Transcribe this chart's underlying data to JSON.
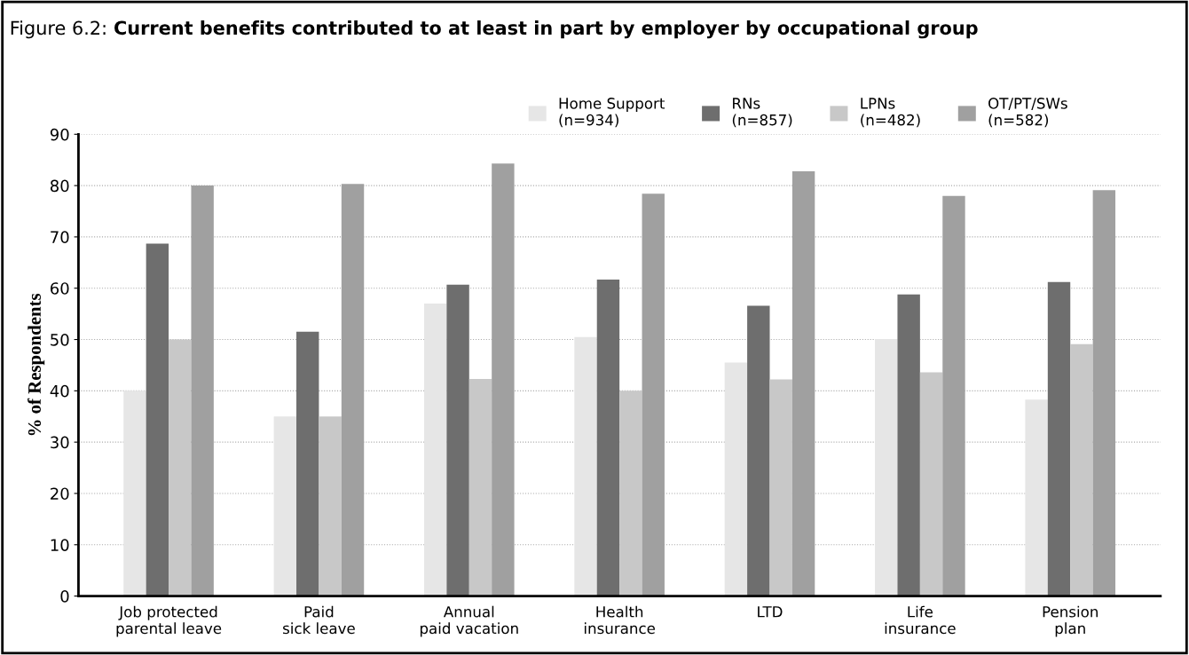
{
  "chart_data": {
    "type": "bar",
    "title": "Figure 6.2: Current benefits contributed to at least in part by employer by occupational group",
    "ylabel": "% of Respondents",
    "categories": [
      "Job protected\nparental leave",
      "Paid\nsick leave",
      "Annual\npaid vacation",
      "Health\ninsurance",
      "LTD",
      "Life\ninsurance",
      "Pension\nplan"
    ],
    "series": [
      {
        "name": "Home Support\n(n=934)",
        "color": "#e6e6e6",
        "values": [
          40,
          35,
          57,
          50.5,
          45.5,
          50.1,
          38.3
        ]
      },
      {
        "name": "RNs\n(n=857)",
        "color": "#6e6e6e",
        "values": [
          68.7,
          51.5,
          60.7,
          61.7,
          56.6,
          58.8,
          61.2
        ]
      },
      {
        "name": "LPNs\n(n=482)",
        "color": "#c8c8c8",
        "values": [
          50,
          35,
          42.3,
          40,
          42.2,
          43.6,
          49.1
        ]
      },
      {
        "name": "OT/PT/SWs\n(n=582)",
        "color": "#a0a0a0",
        "values": [
          80,
          80.3,
          84.3,
          78.4,
          82.8,
          78,
          79.1
        ]
      }
    ],
    "ylim": [
      0,
      90
    ],
    "yticks": [
      0,
      10,
      20,
      30,
      40,
      50,
      60,
      70,
      80,
      90
    ],
    "grid": "y",
    "legend": "top right"
  }
}
